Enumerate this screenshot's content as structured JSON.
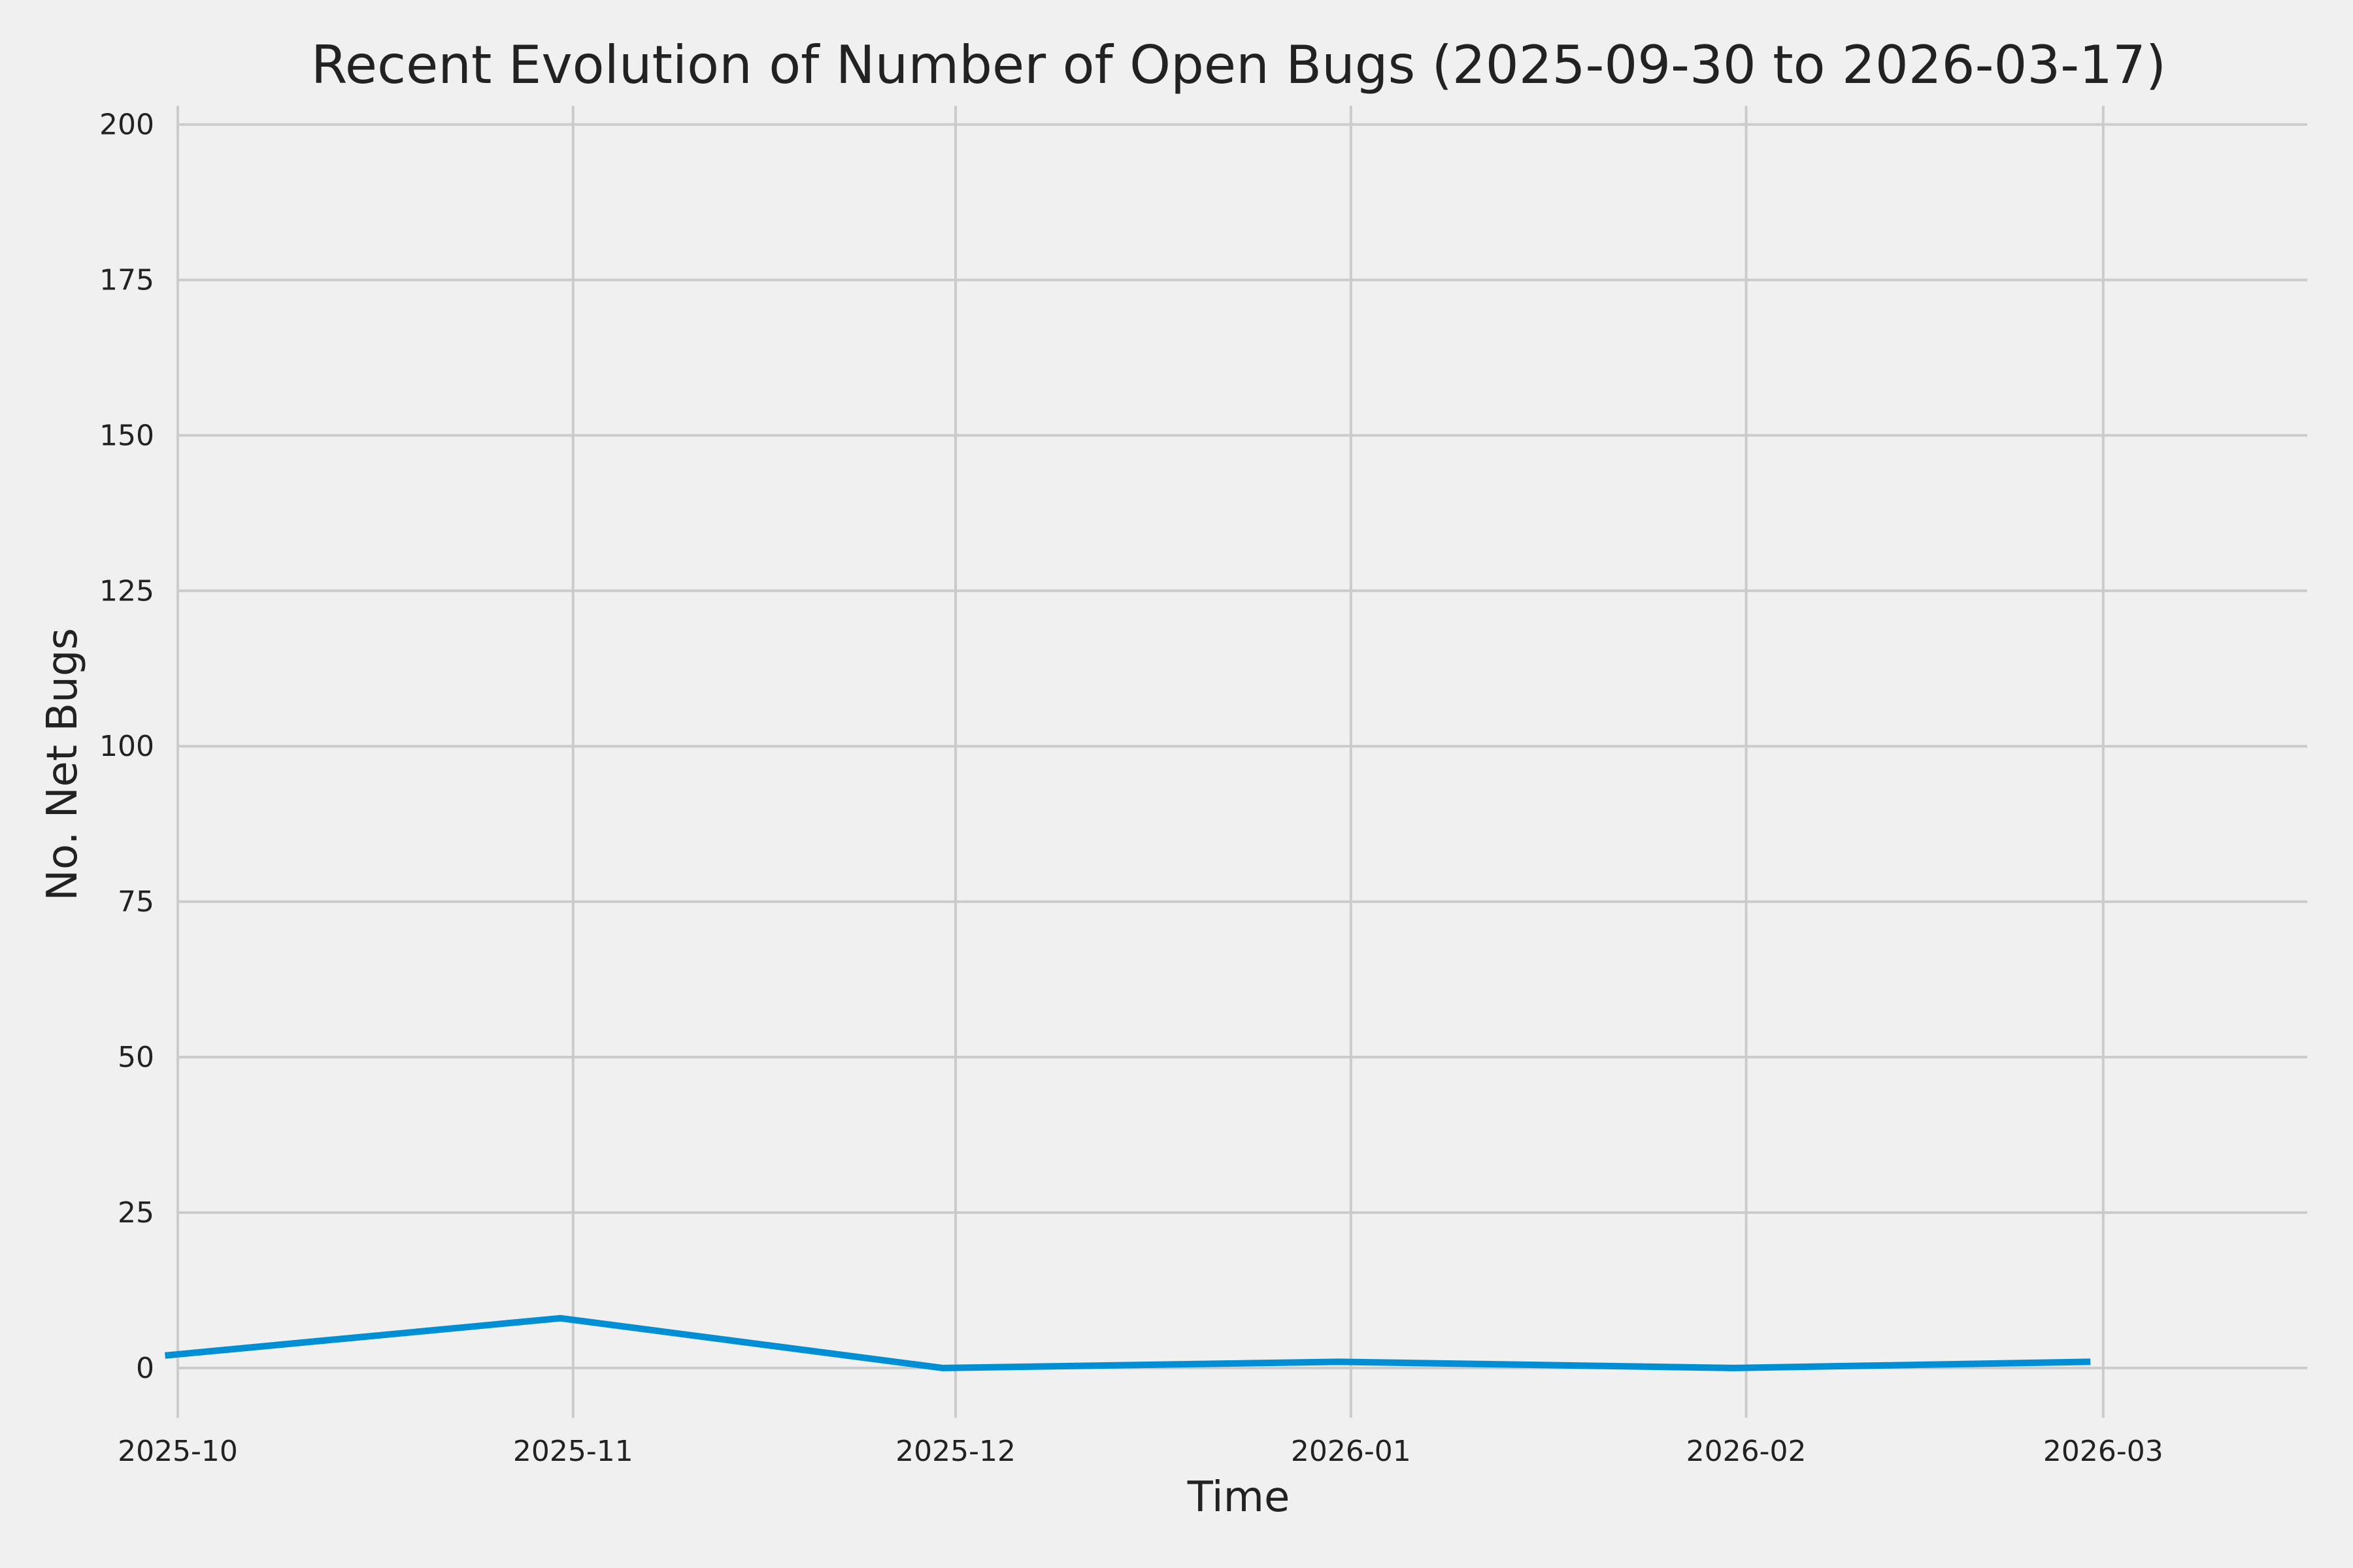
{
  "chart_data": {
    "type": "line",
    "title": "Recent Evolution of Number of Open Bugs (2025-09-30 to 2026-03-17)",
    "xlabel": "Time",
    "ylabel": "No. Net Bugs",
    "x_axis_type": "date",
    "xlim": [
      "2025-10-01",
      "2026-03-17"
    ],
    "ylim": [
      -8,
      203
    ],
    "x_ticks": [
      {
        "date": "2025-10-01",
        "label": "2025-10"
      },
      {
        "date": "2025-11-01",
        "label": "2025-11"
      },
      {
        "date": "2025-12-01",
        "label": "2025-12"
      },
      {
        "date": "2026-01-01",
        "label": "2026-01"
      },
      {
        "date": "2026-02-01",
        "label": "2026-02"
      },
      {
        "date": "2026-03-01",
        "label": "2026-03"
      }
    ],
    "y_ticks": [
      0,
      25,
      50,
      75,
      100,
      125,
      150,
      175,
      200
    ],
    "grid": true,
    "series": [
      {
        "color": "#008fd5",
        "x": [
          "2025-09-30",
          "2025-10-31",
          "2025-11-30",
          "2025-12-31",
          "2026-01-31",
          "2026-02-28"
        ],
        "y": [
          2,
          8,
          0,
          1,
          0,
          1
        ]
      }
    ]
  }
}
